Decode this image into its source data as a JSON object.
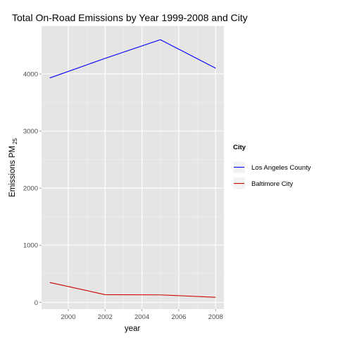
{
  "chart_data": {
    "type": "line",
    "title": "Total On-Road Emissions by Year 1999-2008 and City",
    "xlabel": "year",
    "ylabel": "Emissions PM",
    "ylabel_subscript": "25",
    "x": [
      1999,
      2002,
      2005,
      2008
    ],
    "xlim": [
      1998.55,
      2008.45
    ],
    "ylim": [
      -120,
      4840
    ],
    "xticks": [
      2000,
      2002,
      2004,
      2006,
      2008
    ],
    "yticks": [
      0,
      1000,
      2000,
      3000,
      4000
    ],
    "grid": true,
    "legend": {
      "title": "City",
      "position": "right"
    },
    "series": [
      {
        "name": "Los Angeles County",
        "color": "#0000ff",
        "values": [
          3931,
          4274,
          4601,
          4101
        ]
      },
      {
        "name": "Baltimore City",
        "color": "#cc0000",
        "values": [
          347,
          134,
          130,
          88
        ]
      }
    ]
  }
}
